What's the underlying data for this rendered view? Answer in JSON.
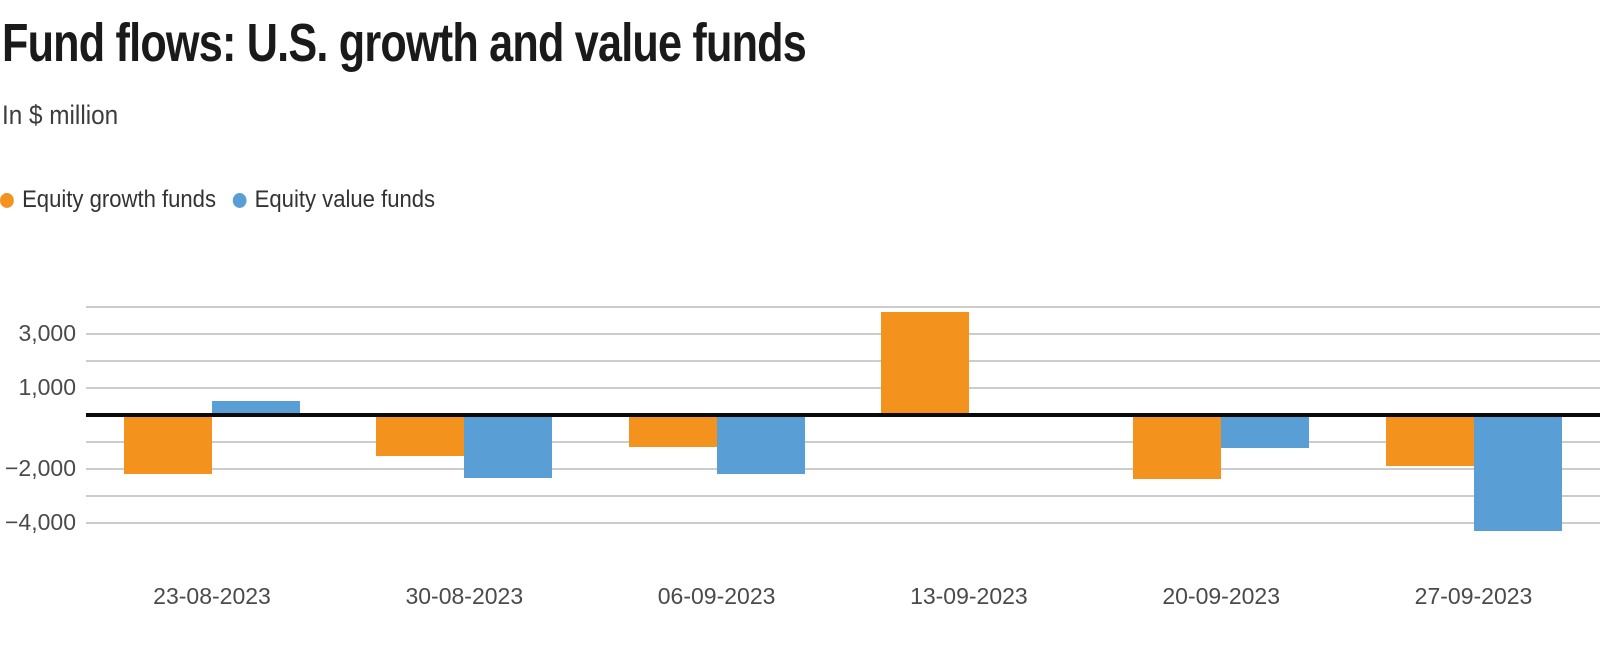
{
  "header": {
    "title": "Fund flows: U.S. growth and value funds",
    "subtitle": "In $ million"
  },
  "chart_data": {
    "type": "bar",
    "title": "Fund flows: U.S. growth and value funds",
    "subtitle": "In $ million",
    "categories": [
      "23-08-2023",
      "30-08-2023",
      "06-09-2023",
      "13-09-2023",
      "20-09-2023",
      "27-09-2023"
    ],
    "series": [
      {
        "name": "Equity growth funds",
        "color": "#f4921e",
        "values": [
          -2200,
          -1550,
          -1200,
          3800,
          -2400,
          -1900
        ]
      },
      {
        "name": "Equity value funds",
        "color": "#5a9ed6",
        "values": [
          500,
          -2350,
          -2200,
          -100,
          -1250,
          -4300
        ]
      }
    ],
    "ylabel": "",
    "xlabel": "",
    "ylim": [
      -4000,
      4000
    ],
    "gridline_step": 1000,
    "grid": "on",
    "legend_position": "top-left",
    "yticks": [
      {
        "value": 3000,
        "label": "3,000"
      },
      {
        "value": 1000,
        "label": "1,000"
      },
      {
        "value": -2000,
        "label": "−2,000"
      },
      {
        "value": -4000,
        "label": "−4,000"
      }
    ],
    "colors": {
      "zero_line": "#0b0b0b",
      "gridline": "#cccccc",
      "axis_text": "#4a4a4a"
    }
  }
}
